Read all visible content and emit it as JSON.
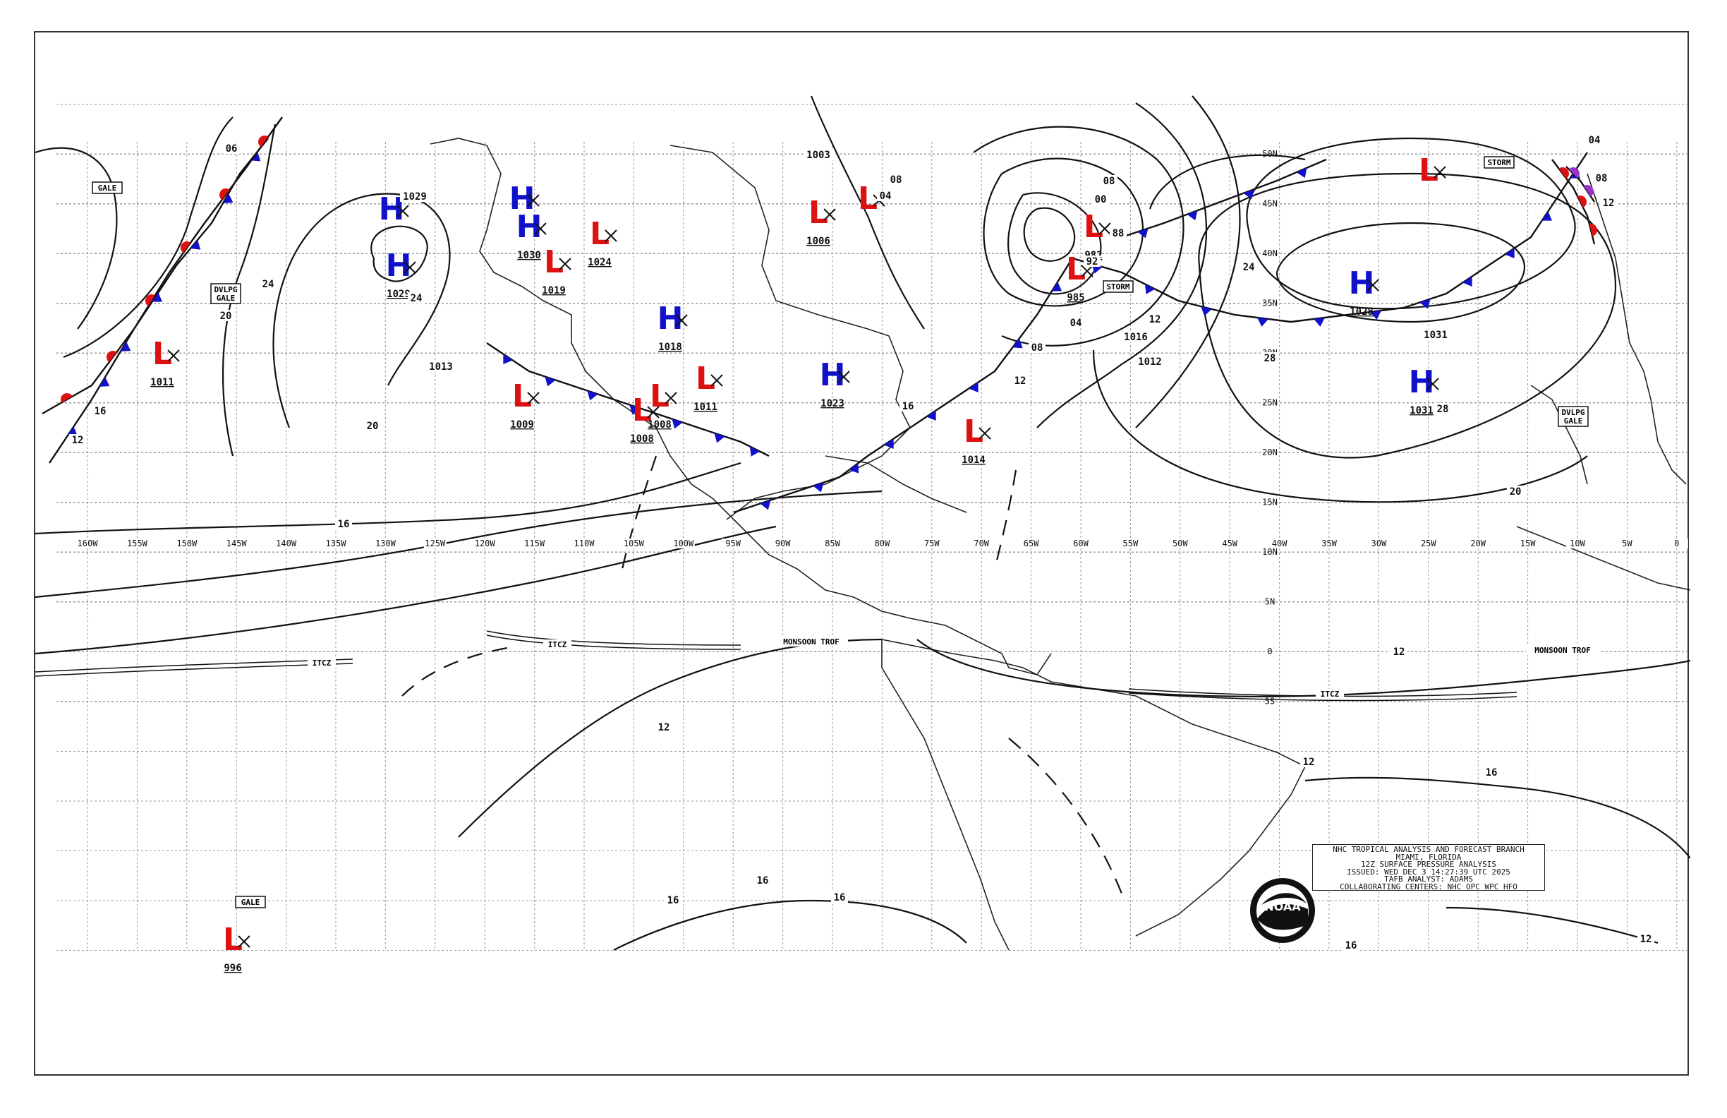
{
  "info_box": {
    "line1": "NHC TROPICAL ANALYSIS AND FORECAST BRANCH",
    "line2": "MIAMI, FLORIDA",
    "line3": "12Z SURFACE PRESSURE ANALYSIS",
    "line4": "ISSUED: WED DEC 3 14:27:39 UTC 2025",
    "line5": "TAFB ANALYST: ADAMS",
    "line6": "COLLABORATING CENTERS: NHC OPC WPC HFO"
  },
  "logo": {
    "icon": "noaa-logo",
    "text": "NOAA"
  },
  "longitudes": [
    "160W",
    "155W",
    "150W",
    "145W",
    "140W",
    "135W",
    "130W",
    "125W",
    "120W",
    "115W",
    "110W",
    "105W",
    "100W",
    "95W",
    "90W",
    "85W",
    "80W",
    "75W",
    "70W",
    "65W",
    "60W",
    "55W",
    "50W",
    "45W",
    "40W",
    "35W",
    "30W",
    "25W",
    "20W",
    "15W",
    "10W",
    "5W",
    "0"
  ],
  "latitudes": [
    "50N",
    "45N",
    "40N",
    "35N",
    "30N",
    "25N",
    "20N",
    "15N",
    "10N",
    "5N",
    "0",
    "5S"
  ],
  "pressure_centers": [
    {
      "type": "H",
      "value": "1029"
    },
    {
      "type": "H",
      "value": ""
    },
    {
      "type": "H",
      "value": "1030"
    },
    {
      "type": "H",
      "value": ""
    },
    {
      "type": "H",
      "value": "1018"
    },
    {
      "type": "H",
      "value": "1023"
    },
    {
      "type": "H",
      "value": "1028"
    },
    {
      "type": "H",
      "value": "1031"
    },
    {
      "type": "L",
      "value": "1011"
    },
    {
      "type": "L",
      "value": "1019"
    },
    {
      "type": "L",
      "value": "1024"
    },
    {
      "type": "L",
      "value": "1009"
    },
    {
      "type": "L",
      "value": "1008"
    },
    {
      "type": "L",
      "value": "1008"
    },
    {
      "type": "L",
      "value": "1011"
    },
    {
      "type": "L",
      "value": "1006"
    },
    {
      "type": "L",
      "value": ""
    },
    {
      "type": "L",
      "value": "1014"
    },
    {
      "type": "L",
      "value": "985"
    },
    {
      "type": "L",
      "value": "982"
    },
    {
      "type": "L",
      "value": ""
    },
    {
      "type": "L",
      "value": "996"
    }
  ],
  "box_labels": [
    "GALE",
    "DVLPG GALE",
    "STORM",
    "STORM",
    "DVLPG GALE",
    "GALE"
  ],
  "feature_labels": [
    "ITCZ",
    "ITCZ",
    "MONSOON TROF",
    "ITCZ",
    "MONSOON TROF"
  ],
  "isobar_labels": [
    "06",
    "1029",
    "24",
    "20",
    "16",
    "12",
    "1013",
    "20",
    "16",
    "24",
    "1003",
    "04",
    "08",
    "00",
    "08",
    "88",
    "92",
    "04",
    "08",
    "12",
    "16",
    "24",
    "28",
    "1031",
    "28",
    "12",
    "04",
    "08",
    "12",
    "20",
    "12",
    "12",
    "12",
    "16",
    "16",
    "16",
    "16",
    "12",
    "16",
    "1016",
    "1012"
  ],
  "colors": {
    "high": "#1111cc",
    "low": "#dd1111",
    "cold_front": "#1111cc",
    "warm_front": "#dd1111",
    "occluded": "#9933cc"
  }
}
